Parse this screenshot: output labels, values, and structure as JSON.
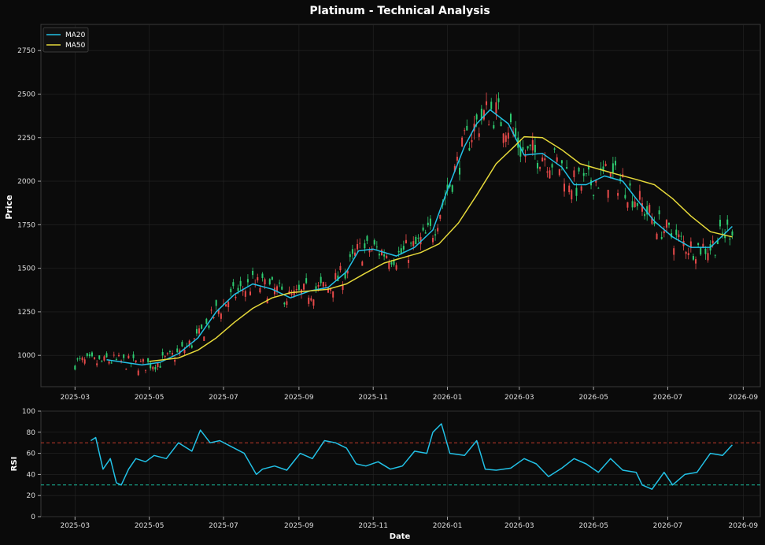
{
  "title": "Platinum - Technical Analysis",
  "colors": {
    "background": "#0a0a0a",
    "axes_edge": "#3a3a3a",
    "grid": "#262626",
    "text": "#ffffff",
    "tick_text": "#dddddd",
    "up": "#2ecc71",
    "down": "#e84a4a",
    "ma20": "#22c1e6",
    "ma50": "#e6d93a",
    "rsi": "#22c1e6",
    "overbought": "#c0392b",
    "oversold": "#1abc9c"
  },
  "chart_data": [
    {
      "type": "candlestick",
      "ylabel": "Price",
      "ylim": [
        820,
        2900
      ],
      "xlim": [
        "2025-02-01",
        "2026-09-15"
      ],
      "yticks": [
        1000,
        1250,
        1500,
        1750,
        2000,
        2250,
        2500,
        2750
      ],
      "xticks": [
        "2025-03",
        "2025-05",
        "2025-07",
        "2025-09",
        "2025-11",
        "2026-01",
        "2026-03",
        "2026-05",
        "2026-07",
        "2026-09"
      ],
      "grid": true,
      "legend": {
        "position": "top-left",
        "entries": [
          "MA20",
          "MA50"
        ]
      },
      "series": [
        {
          "name": "MA20",
          "x": [
            "2025-03-27",
            "2025-04-10",
            "2025-04-25",
            "2025-05-10",
            "2025-05-25",
            "2025-06-10",
            "2025-06-25",
            "2025-07-10",
            "2025-07-25",
            "2025-08-10",
            "2025-08-25",
            "2025-09-10",
            "2025-09-25",
            "2025-10-10",
            "2025-10-20",
            "2025-11-01",
            "2025-11-20",
            "2025-12-05",
            "2025-12-20",
            "2026-01-01",
            "2026-01-15",
            "2026-01-25",
            "2026-02-05",
            "2026-02-20",
            "2026-03-05",
            "2026-03-20",
            "2026-04-05",
            "2026-04-15",
            "2026-04-25",
            "2026-05-10",
            "2026-05-25",
            "2026-06-05",
            "2026-06-20",
            "2026-07-05",
            "2026-07-20",
            "2026-08-05",
            "2026-08-23"
          ],
          "y": [
            975,
            960,
            945,
            960,
            1010,
            1100,
            1250,
            1350,
            1410,
            1380,
            1330,
            1370,
            1390,
            1480,
            1600,
            1610,
            1570,
            1620,
            1720,
            1950,
            2200,
            2330,
            2410,
            2330,
            2150,
            2160,
            2080,
            1980,
            1980,
            2030,
            2000,
            1900,
            1770,
            1680,
            1620,
            1620,
            1740
          ]
        },
        {
          "name": "MA50",
          "x": [
            "2025-05-01",
            "2025-05-25",
            "2025-06-10",
            "2025-06-25",
            "2025-07-10",
            "2025-07-25",
            "2025-08-10",
            "2025-08-25",
            "2025-09-10",
            "2025-09-25",
            "2025-10-10",
            "2025-10-25",
            "2025-11-10",
            "2025-11-25",
            "2025-12-10",
            "2025-12-25",
            "2026-01-10",
            "2026-01-25",
            "2026-02-10",
            "2026-02-25",
            "2026-03-05",
            "2026-03-20",
            "2026-04-05",
            "2026-04-20",
            "2026-05-05",
            "2026-05-20",
            "2026-06-05",
            "2026-06-20",
            "2026-07-05",
            "2026-07-20",
            "2026-08-05",
            "2026-08-23"
          ],
          "y": [
            965,
            985,
            1030,
            1100,
            1190,
            1270,
            1330,
            1360,
            1370,
            1380,
            1410,
            1470,
            1530,
            1560,
            1590,
            1640,
            1760,
            1920,
            2100,
            2200,
            2255,
            2250,
            2180,
            2100,
            2070,
            2040,
            2010,
            1980,
            1900,
            1800,
            1710,
            1680
          ]
        }
      ]
    },
    {
      "type": "line",
      "xlabel": "Date",
      "ylabel": "RSI",
      "ylim": [
        0,
        100
      ],
      "yticks": [
        0,
        20,
        40,
        60,
        80,
        100
      ],
      "xticks": [
        "2025-03",
        "2025-05",
        "2025-07",
        "2025-09",
        "2025-11",
        "2026-01",
        "2026-03",
        "2026-05",
        "2026-07",
        "2026-09"
      ],
      "levels": [
        70,
        30
      ],
      "grid": true,
      "series": [
        {
          "name": "RSI",
          "x": [
            "2025-03-14",
            "2025-03-18",
            "2025-03-24",
            "2025-03-30",
            "2025-04-04",
            "2025-04-08",
            "2025-04-14",
            "2025-04-20",
            "2025-04-28",
            "2025-05-05",
            "2025-05-15",
            "2025-05-25",
            "2025-06-05",
            "2025-06-12",
            "2025-06-20",
            "2025-06-28",
            "2025-07-08",
            "2025-07-18",
            "2025-07-28",
            "2025-08-02",
            "2025-08-12",
            "2025-08-22",
            "2025-09-02",
            "2025-09-12",
            "2025-09-22",
            "2025-10-01",
            "2025-10-10",
            "2025-10-18",
            "2025-10-26",
            "2025-11-05",
            "2025-11-15",
            "2025-11-25",
            "2025-12-05",
            "2025-12-15",
            "2025-12-20",
            "2025-12-27",
            "2026-01-03",
            "2026-01-15",
            "2026-01-25",
            "2026-02-01",
            "2026-02-10",
            "2026-02-22",
            "2026-03-05",
            "2026-03-15",
            "2026-03-25",
            "2026-04-05",
            "2026-04-15",
            "2026-04-25",
            "2026-05-05",
            "2026-05-15",
            "2026-05-25",
            "2026-06-05",
            "2026-06-10",
            "2026-06-18",
            "2026-06-28",
            "2026-07-05",
            "2026-07-15",
            "2026-07-25",
            "2026-08-05",
            "2026-08-15",
            "2026-08-23"
          ],
          "y": [
            72,
            75,
            45,
            55,
            32,
            30,
            45,
            55,
            52,
            58,
            55,
            70,
            62,
            82,
            70,
            72,
            66,
            60,
            40,
            45,
            48,
            44,
            60,
            55,
            72,
            70,
            65,
            50,
            48,
            52,
            45,
            48,
            62,
            60,
            80,
            88,
            60,
            58,
            72,
            45,
            44,
            46,
            55,
            50,
            38,
            46,
            55,
            50,
            42,
            55,
            44,
            42,
            30,
            26,
            42,
            30,
            40,
            42,
            60,
            58,
            68
          ]
        }
      ]
    }
  ]
}
